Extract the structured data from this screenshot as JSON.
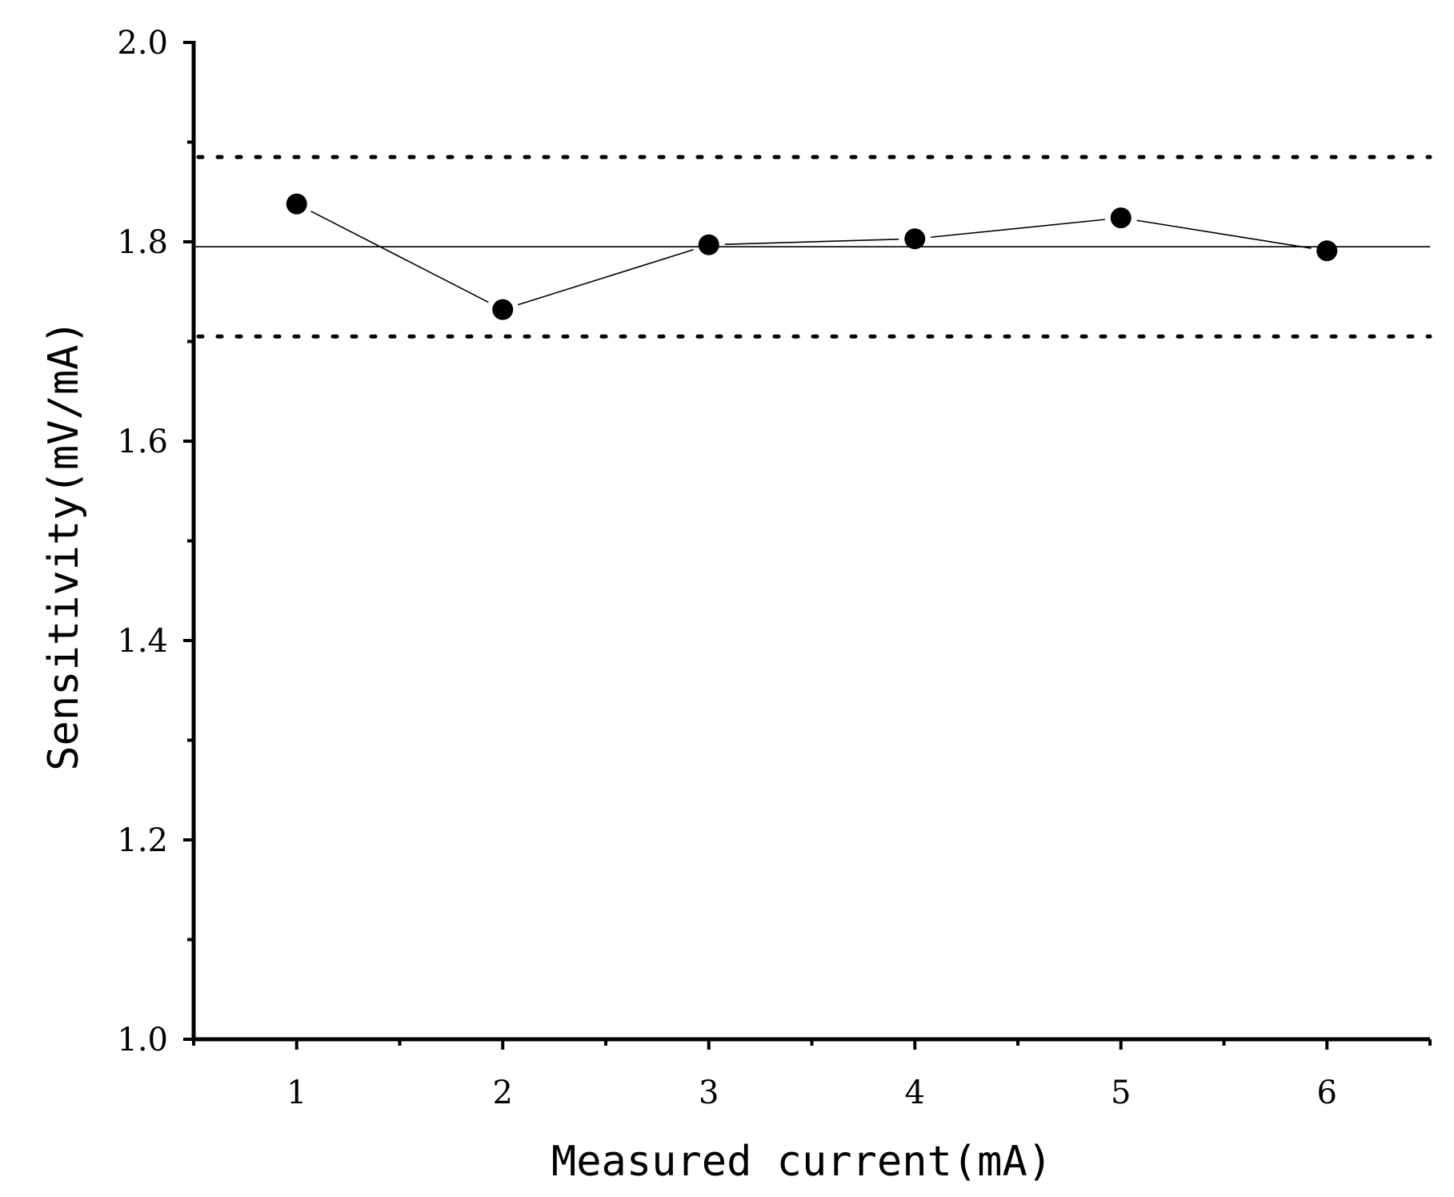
{
  "chart_data": {
    "type": "line",
    "title": "",
    "xlabel": "Measured current(mA)",
    "ylabel": "Sensitivity(mV/mA)",
    "xlim": [
      0.5,
      6.5
    ],
    "ylim": [
      1.0,
      2.0
    ],
    "x_ticks": [
      "1",
      "2",
      "3",
      "4",
      "5",
      "6"
    ],
    "y_ticks": [
      "1.0",
      "1.2",
      "1.4",
      "1.6",
      "1.8",
      "2.0"
    ],
    "grid": false,
    "series": [
      {
        "x": [
          1,
          2,
          3,
          4,
          5,
          6
        ],
        "values": [
          1.838,
          1.732,
          1.797,
          1.803,
          1.824,
          1.791
        ]
      }
    ],
    "reference_lines": {
      "mean": 1.795,
      "upper_limit": 1.885,
      "lower_limit": 1.705
    }
  }
}
